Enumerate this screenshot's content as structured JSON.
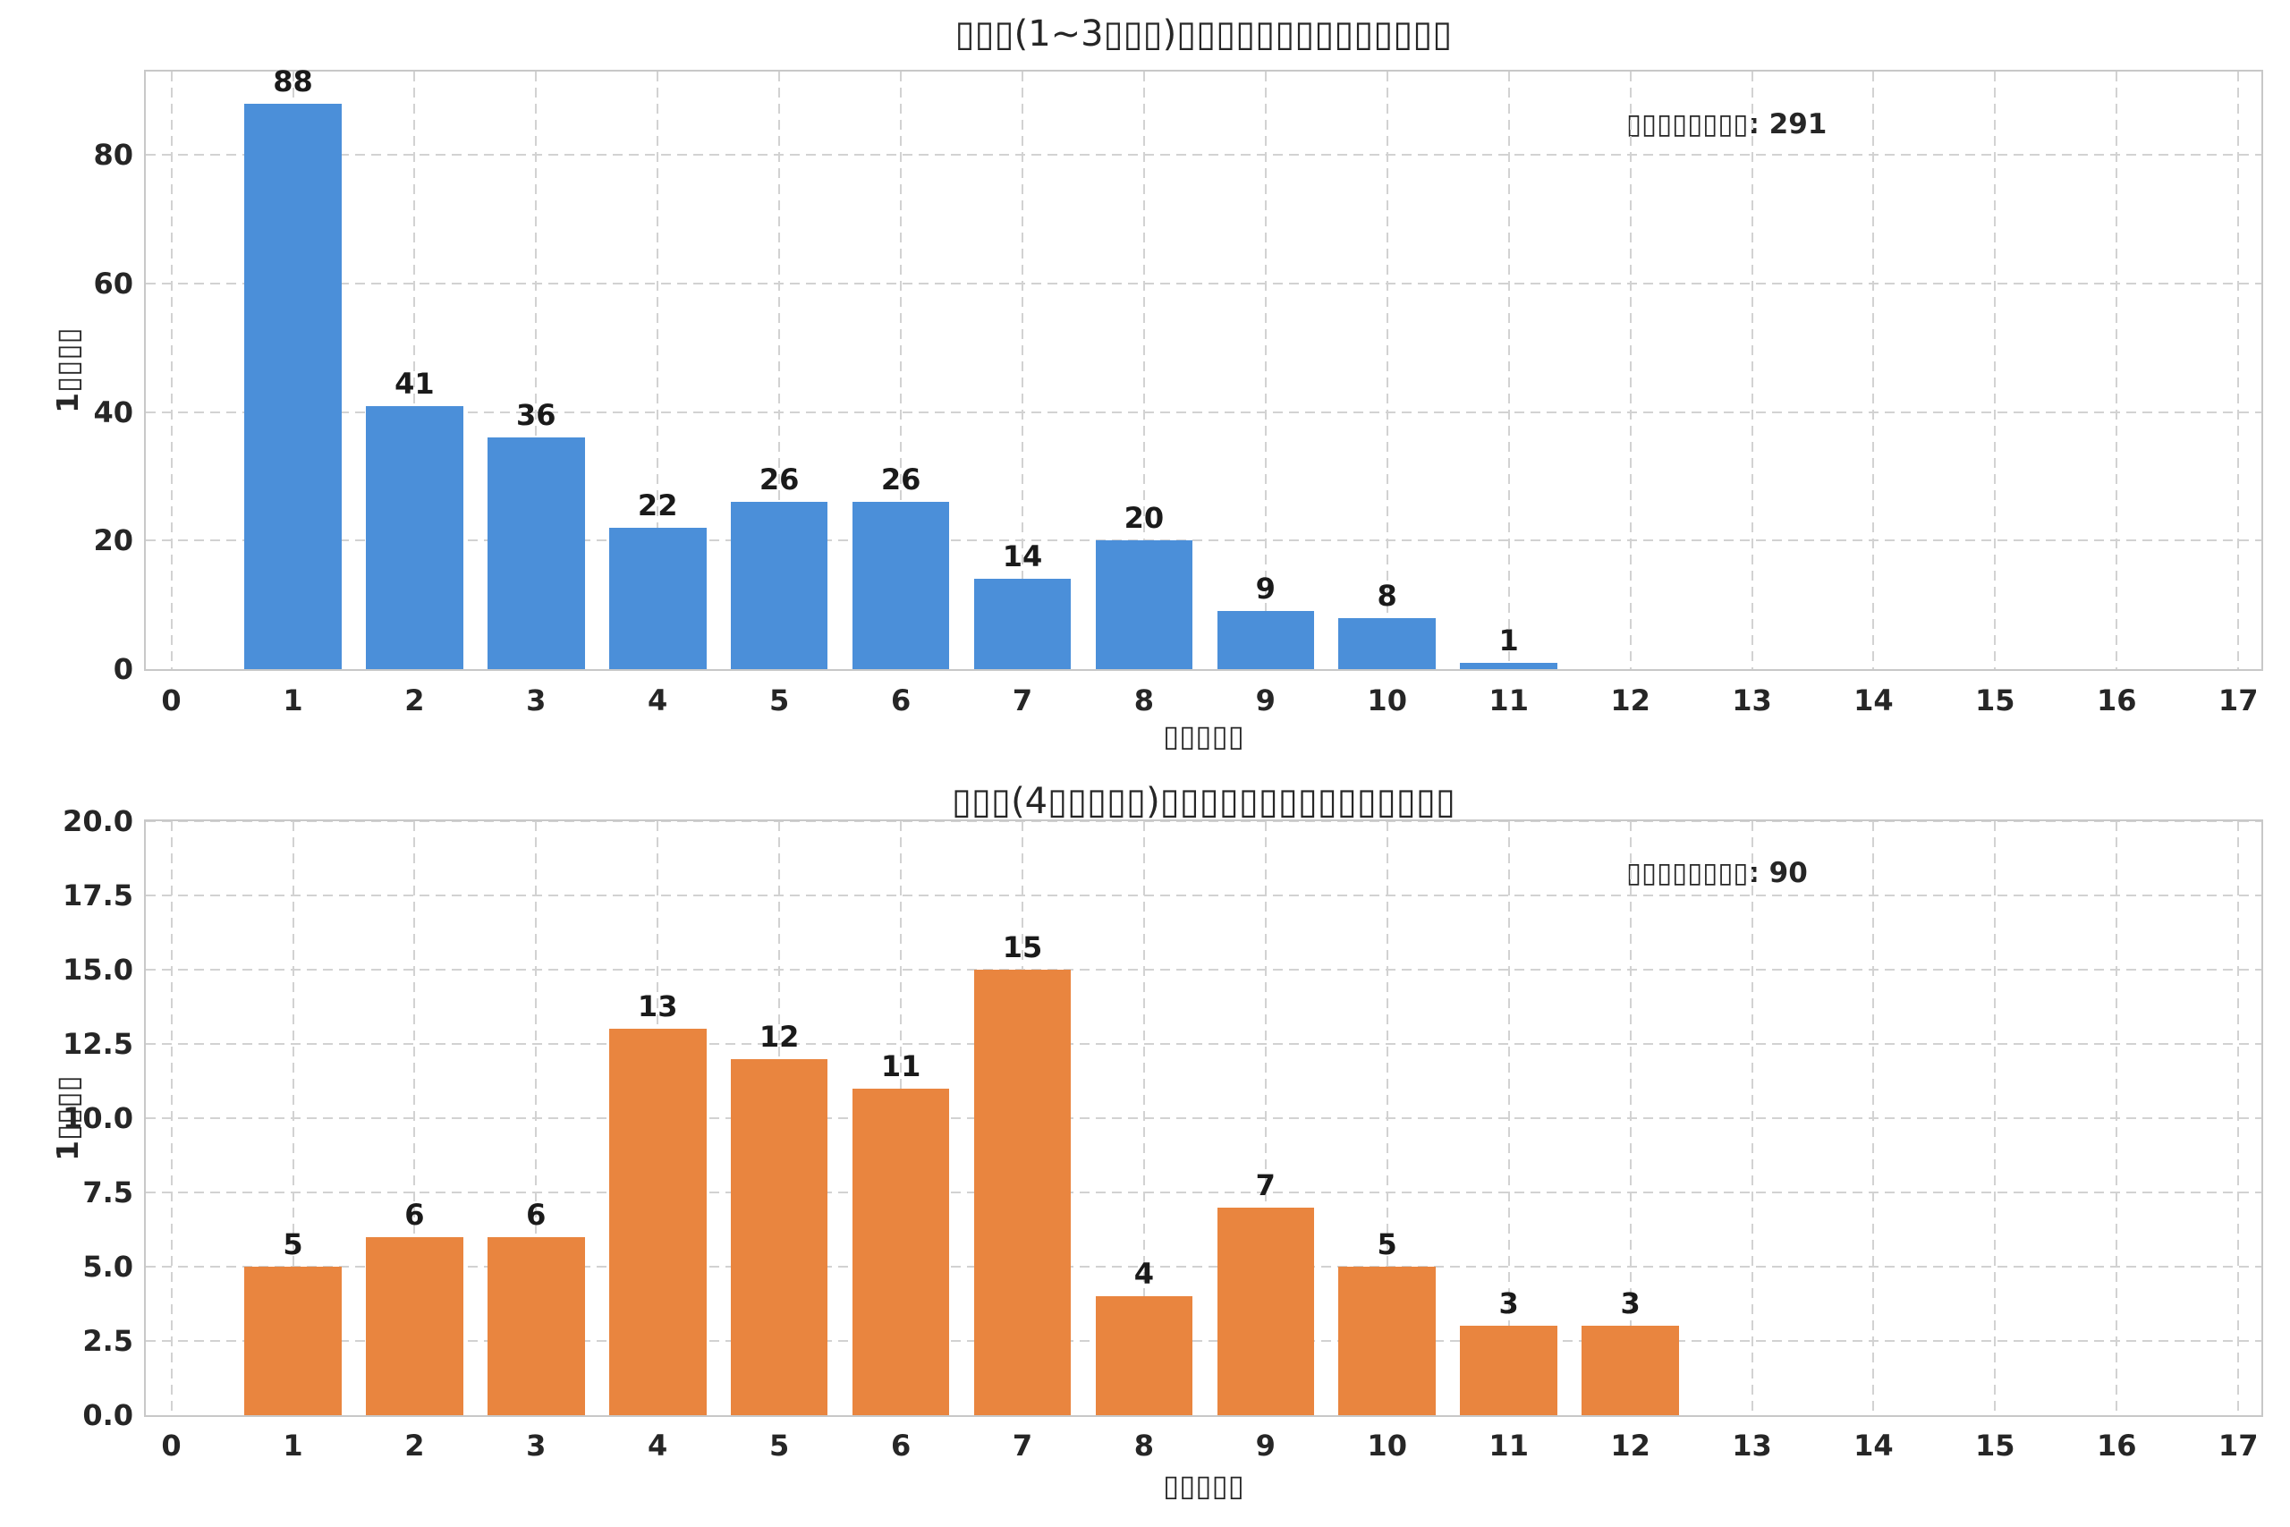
{
  "figure": {
    "background": "#ffffff",
    "text_color": "#262626",
    "grid_color": "#d2d2d2",
    "spine_color": "#c8c8c8"
  },
  "chart_data": [
    {
      "type": "bar",
      "title": "▯▯▯(1~3▯▯▯)▯▯▯▯▯▯▯▯▯▯▯▯▯▯",
      "xlabel": "▯▯▯▯▯",
      "ylabel": "1▯▯▯▯",
      "annotation": "▯▯▯▯▯▯▯▯: 291",
      "bar_color": "#4B8FD9",
      "categories": [
        1,
        2,
        3,
        4,
        5,
        6,
        7,
        8,
        9,
        10,
        11
      ],
      "values": [
        88,
        41,
        36,
        22,
        26,
        26,
        14,
        20,
        9,
        8,
        1
      ],
      "bar_width": 0.8,
      "xlim": [
        -0.21,
        17.19
      ],
      "ylim": [
        0,
        93
      ],
      "xticks": [
        0,
        1,
        2,
        3,
        4,
        5,
        6,
        7,
        8,
        9,
        10,
        11,
        12,
        13,
        14,
        15,
        16,
        17
      ],
      "xtick_labels": [
        "0",
        "1",
        "2",
        "3",
        "4",
        "5",
        "6",
        "7",
        "8",
        "9",
        "10",
        "11",
        "12",
        "13",
        "14",
        "15",
        "16",
        "17"
      ],
      "yticks": [
        0,
        20,
        40,
        60,
        80
      ],
      "ytick_labels": [
        "0",
        "20",
        "40",
        "60",
        "80"
      ],
      "grid": "dashed",
      "legend": "none"
    },
    {
      "type": "bar",
      "title": "▯▯▯(4▯▯▯▯▯)▯▯▯▯▯▯▯▯▯▯▯▯▯▯▯",
      "xlabel": "▯▯▯▯▯",
      "ylabel": "1▯▯▯▯",
      "annotation": "▯▯▯▯▯▯▯▯: 90",
      "bar_color": "#E9853F",
      "categories": [
        1,
        2,
        3,
        4,
        5,
        6,
        7,
        8,
        9,
        10,
        11,
        12
      ],
      "values": [
        5,
        6,
        6,
        13,
        12,
        11,
        15,
        4,
        7,
        5,
        3,
        3
      ],
      "bar_width": 0.8,
      "xlim": [
        -0.21,
        17.19
      ],
      "ylim": [
        0,
        20
      ],
      "xticks": [
        0,
        1,
        2,
        3,
        4,
        5,
        6,
        7,
        8,
        9,
        10,
        11,
        12,
        13,
        14,
        15,
        16,
        17
      ],
      "xtick_labels": [
        "0",
        "1",
        "2",
        "3",
        "4",
        "5",
        "6",
        "7",
        "8",
        "9",
        "10",
        "11",
        "12",
        "13",
        "14",
        "15",
        "16",
        "17"
      ],
      "yticks": [
        0,
        2.5,
        5,
        7.5,
        10,
        12.5,
        15,
        17.5,
        20
      ],
      "ytick_labels": [
        "0.0",
        "2.5",
        "5.0",
        "7.5",
        "10.0",
        "12.5",
        "15.0",
        "17.5",
        "20.0"
      ],
      "grid": "dashed",
      "legend": "none"
    }
  ]
}
